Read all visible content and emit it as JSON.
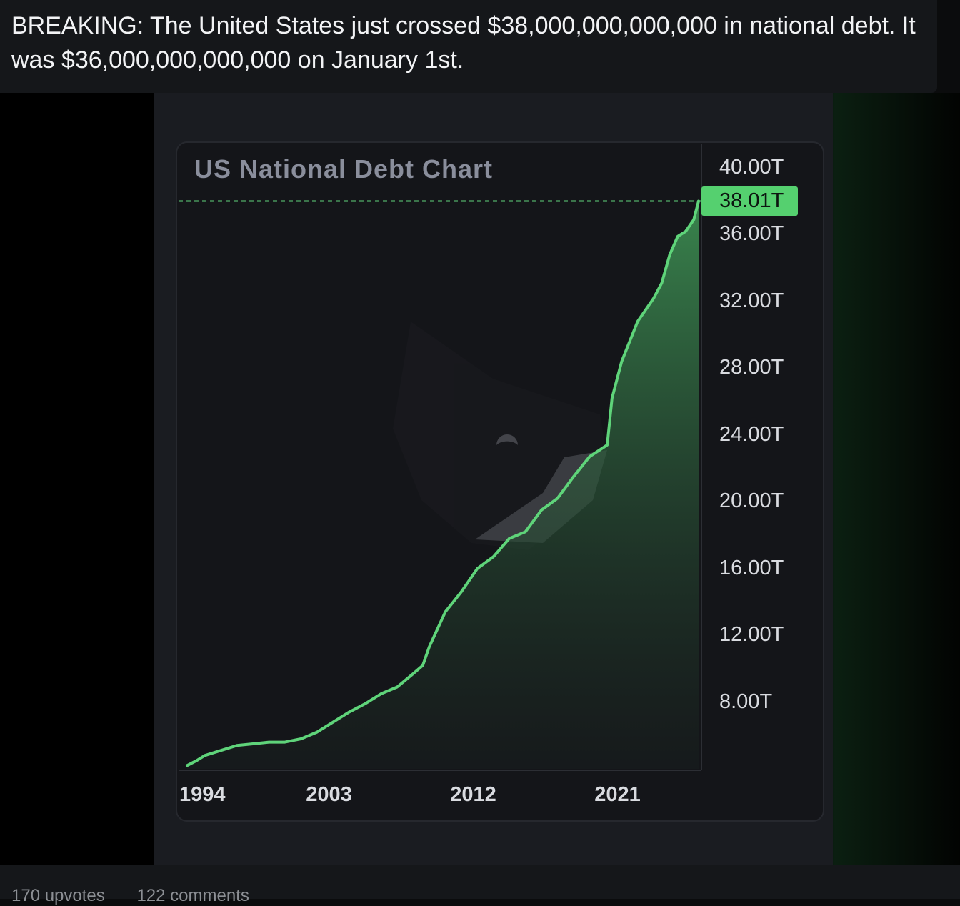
{
  "post": {
    "title": "BREAKING: The United States just crossed $38,000,000,000,000 in national debt. It was $36,000,000,000,000 on January 1st.",
    "upvotes": "170 upvotes",
    "comments": "122 comments"
  },
  "colors": {
    "line": "#5fd47a",
    "fill_top": "#3b8a50",
    "fill_bottom": "#1a2320",
    "tag_bg": "#55d06f",
    "background": "#141519"
  },
  "chart_data": {
    "type": "area",
    "title": "US National Debt Chart",
    "xlabel": "",
    "ylabel": "",
    "x_ticks": [
      1994,
      2003,
      2012,
      2021
    ],
    "y_ticks": [
      "40.00T",
      "36.00T",
      "32.00T",
      "28.00T",
      "24.00T",
      "20.00T",
      "16.00T",
      "12.00T",
      "8.00T"
    ],
    "ylim": [
      4,
      40
    ],
    "xlim": [
      1993.9,
      2025.8
    ],
    "current_value_label": "38.01T",
    "current_value": 38.01,
    "grid": false,
    "legend": "none",
    "series": [
      {
        "x": [
          1993.9,
          1994.5,
          1995,
          1996,
          1997,
          1998,
          1999,
          2000,
          2001,
          2002,
          2003,
          2004,
          2005,
          2006,
          2007,
          2008,
          2008.6,
          2009,
          2010,
          2011,
          2012,
          2013,
          2014,
          2015,
          2016,
          2017,
          2018,
          2019,
          2020.1,
          2020.4,
          2021,
          2022,
          2023,
          2023.5,
          2024,
          2024.5,
          2025,
          2025.5,
          2025.8
        ],
        "y": [
          4.2,
          4.5,
          4.8,
          5.1,
          5.4,
          5.5,
          5.6,
          5.6,
          5.8,
          6.2,
          6.8,
          7.4,
          7.9,
          8.5,
          8.9,
          9.7,
          10.2,
          11.3,
          13.4,
          14.6,
          16.0,
          16.7,
          17.8,
          18.2,
          19.5,
          20.2,
          21.5,
          22.7,
          23.4,
          26.2,
          28.4,
          30.8,
          32.2,
          33.1,
          34.8,
          35.9,
          36.2,
          36.9,
          38.01
        ]
      }
    ]
  }
}
